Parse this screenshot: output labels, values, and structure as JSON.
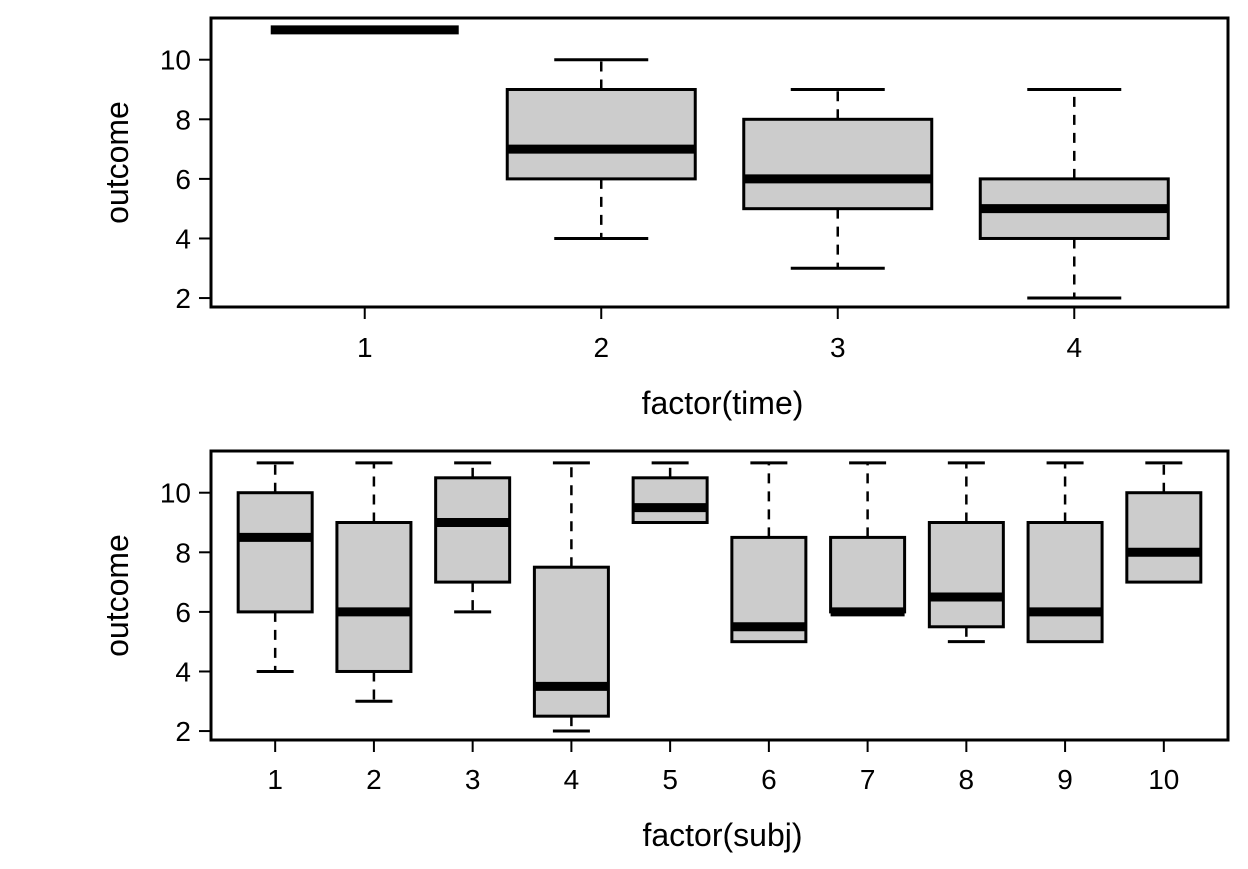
{
  "chart_data": [
    {
      "type": "box",
      "title": "",
      "xlabel": "factor(time)",
      "ylabel": "outcome",
      "ylim": [
        1.7,
        11.4
      ],
      "yticks": [
        2,
        4,
        6,
        8,
        10
      ],
      "grid": false,
      "box_fill": "#cccccc",
      "categories": [
        "1",
        "2",
        "3",
        "4"
      ],
      "boxes": [
        {
          "category": "1",
          "whisker_low": 11,
          "q1": 11,
          "median": 11,
          "q3": 11,
          "whisker_high": 11
        },
        {
          "category": "2",
          "whisker_low": 4,
          "q1": 6,
          "median": 7,
          "q3": 9,
          "whisker_high": 10
        },
        {
          "category": "3",
          "whisker_low": 3,
          "q1": 5,
          "median": 6,
          "q3": 8,
          "whisker_high": 9
        },
        {
          "category": "4",
          "whisker_low": 2,
          "q1": 4,
          "median": 5,
          "q3": 6,
          "whisker_high": 9
        }
      ]
    },
    {
      "type": "box",
      "title": "",
      "xlabel": "factor(subj)",
      "ylabel": "outcome",
      "ylim": [
        1.7,
        11.4
      ],
      "yticks": [
        2,
        4,
        6,
        8,
        10
      ],
      "grid": false,
      "box_fill": "#cccccc",
      "categories": [
        "1",
        "2",
        "3",
        "4",
        "5",
        "6",
        "7",
        "8",
        "9",
        "10"
      ],
      "boxes": [
        {
          "category": "1",
          "whisker_low": 4,
          "q1": 6,
          "median": 8.5,
          "q3": 10,
          "whisker_high": 11
        },
        {
          "category": "2",
          "whisker_low": 3,
          "q1": 4,
          "median": 6,
          "q3": 9,
          "whisker_high": 11
        },
        {
          "category": "3",
          "whisker_low": 6,
          "q1": 7,
          "median": 9,
          "q3": 10.5,
          "whisker_high": 11
        },
        {
          "category": "4",
          "whisker_low": 2,
          "q1": 2.5,
          "median": 3.5,
          "q3": 7.5,
          "whisker_high": 11
        },
        {
          "category": "5",
          "whisker_low": 9,
          "q1": 9,
          "median": 9.5,
          "q3": 10.5,
          "whisker_high": 11
        },
        {
          "category": "6",
          "whisker_low": 5,
          "q1": 5,
          "median": 5.5,
          "q3": 8.5,
          "whisker_high": 11
        },
        {
          "category": "7",
          "whisker_low": 6,
          "q1": 6,
          "median": 6,
          "q3": 8.5,
          "whisker_high": 11
        },
        {
          "category": "8",
          "whisker_low": 5,
          "q1": 5.5,
          "median": 6.5,
          "q3": 9,
          "whisker_high": 11
        },
        {
          "category": "9",
          "whisker_low": 5,
          "q1": 5,
          "median": 6,
          "q3": 9,
          "whisker_high": 11
        },
        {
          "category": "10",
          "whisker_low": 7,
          "q1": 7,
          "median": 8,
          "q3": 10,
          "whisker_high": 11
        }
      ]
    }
  ]
}
